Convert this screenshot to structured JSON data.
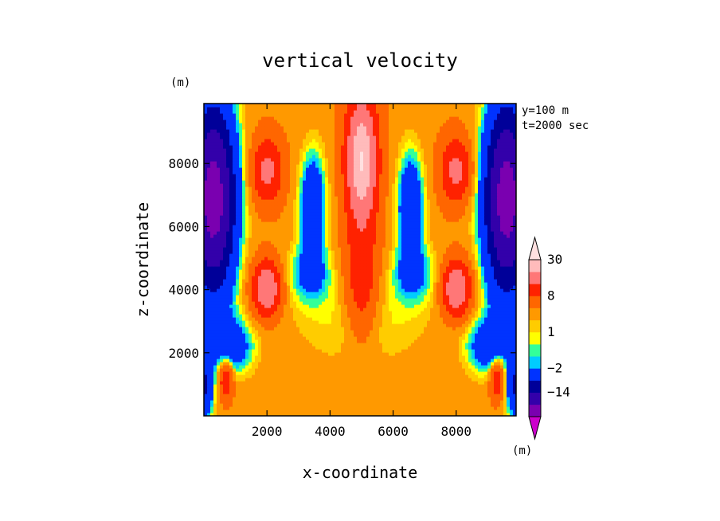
{
  "chart_data": {
    "type": "heatmap",
    "title": "vertical velocity",
    "xlabel": "x-coordinate",
    "ylabel": "z-coordinate",
    "x_unit": "(m)",
    "y_unit": "(m)",
    "xlim": [
      0,
      9900
    ],
    "ylim": [
      0,
      9900
    ],
    "x_ticks": [
      "2000",
      "4000",
      "6000",
      "8000"
    ],
    "y_ticks": [
      "2000",
      "4000",
      "6000",
      "8000"
    ],
    "annotations": [
      "y=100 m",
      "t=2000 sec"
    ],
    "colorbar": {
      "levels": [
        -30,
        -22,
        -14,
        -8,
        -2,
        -1,
        0,
        1,
        2,
        4,
        8,
        14,
        22,
        30
      ],
      "labels": [
        "30",
        "8",
        "1",
        "−2",
        "−14"
      ],
      "unit": "(m)",
      "colors": [
        "#cc00cc",
        "#7a00b0",
        "#3300aa",
        "#000099",
        "#0033ff",
        "#00ccff",
        "#33ff99",
        "#ffff00",
        "#ffcc00",
        "#ff9900",
        "#ff6600",
        "#ff2200",
        "#ff7777",
        "#ffbbbb",
        "#ffe0e0"
      ]
    },
    "features": [
      {
        "kind": "updraft",
        "x": 5000,
        "z": 8500,
        "w": 30
      },
      {
        "kind": "updraft",
        "x": 5000,
        "z": 2500,
        "w": 4
      },
      {
        "kind": "downdraft",
        "x": 3500,
        "z": 6500,
        "w": -8
      },
      {
        "kind": "downdraft",
        "x": 6500,
        "z": 6500,
        "w": -8
      },
      {
        "kind": "updraft",
        "x": 2000,
        "z": 4000,
        "w": 22
      },
      {
        "kind": "updraft",
        "x": 8000,
        "z": 4000,
        "w": 22
      },
      {
        "kind": "updraft",
        "x": 2000,
        "z": 7800,
        "w": 14
      },
      {
        "kind": "updraft",
        "x": 8000,
        "z": 7800,
        "w": 14
      },
      {
        "kind": "downdraft",
        "x": 300,
        "z": 7500,
        "w": -30
      },
      {
        "kind": "downdraft",
        "x": 9600,
        "z": 7500,
        "w": -30
      }
    ]
  }
}
